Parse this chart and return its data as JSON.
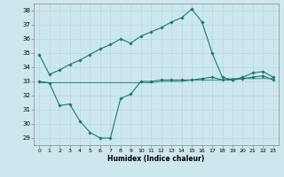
{
  "xlabel": "Humidex (Indice chaleur)",
  "ylabel": "",
  "bg_color": "#cde8ed",
  "line_color": "#1a7a6e",
  "grid_color": "#b8d8de",
  "xlim": [
    -0.5,
    23.5
  ],
  "ylim": [
    28.5,
    38.5
  ],
  "yticks": [
    29,
    30,
    31,
    32,
    33,
    34,
    35,
    36,
    37,
    38
  ],
  "xticks": [
    0,
    1,
    2,
    3,
    4,
    5,
    6,
    7,
    8,
    9,
    10,
    11,
    12,
    13,
    14,
    15,
    16,
    17,
    18,
    19,
    20,
    21,
    22,
    23
  ],
  "series1_x": [
    0,
    1,
    2,
    3,
    4,
    5,
    6,
    7,
    8,
    9,
    10,
    11,
    12,
    13,
    14,
    15,
    16,
    17,
    18,
    19,
    20,
    21,
    22,
    23
  ],
  "series1_y": [
    34.9,
    33.5,
    33.8,
    34.2,
    34.5,
    34.9,
    35.3,
    35.6,
    36.0,
    35.7,
    36.2,
    36.5,
    36.8,
    37.2,
    37.5,
    38.1,
    37.2,
    35.0,
    33.3,
    33.1,
    33.3,
    33.6,
    33.7,
    33.3
  ],
  "series2_x": [
    0,
    1,
    2,
    3,
    4,
    5,
    6,
    7,
    8,
    9,
    10,
    11,
    12,
    13,
    14,
    15,
    16,
    17,
    18,
    19,
    20,
    21,
    22,
    23
  ],
  "series2_y": [
    33.0,
    32.9,
    31.3,
    31.4,
    30.2,
    29.4,
    29.0,
    29.0,
    31.8,
    32.1,
    33.0,
    33.0,
    33.1,
    33.1,
    33.1,
    33.1,
    33.2,
    33.3,
    33.1,
    33.1,
    33.2,
    33.3,
    33.4,
    33.1
  ],
  "series3_x": [
    0,
    1,
    2,
    3,
    4,
    5,
    6,
    7,
    8,
    9,
    10,
    11,
    12,
    13,
    14,
    15,
    16,
    17,
    18,
    19,
    20,
    21,
    22,
    23
  ],
  "series3_y": [
    32.9,
    32.9,
    32.9,
    32.9,
    32.9,
    32.9,
    32.9,
    32.9,
    32.9,
    32.9,
    32.9,
    32.9,
    33.0,
    33.0,
    33.0,
    33.1,
    33.1,
    33.1,
    33.1,
    33.2,
    33.2,
    33.2,
    33.2,
    33.2
  ]
}
